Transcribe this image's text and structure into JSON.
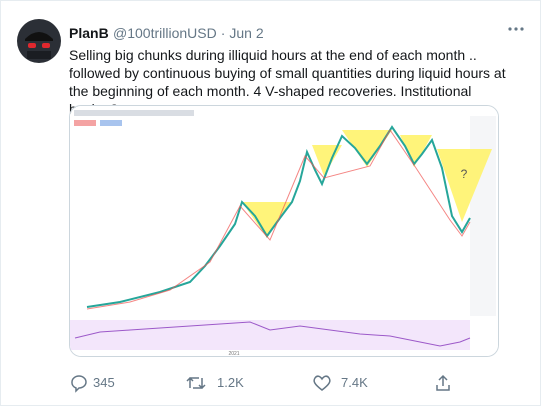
{
  "tweet": {
    "author": "PlanB",
    "handle": "@100trillionUSD",
    "separator": "·",
    "date": "Jun 2",
    "text": "Selling big chunks during illiquid hours at the end of each month .. followed by continuous buying of small quantities during liquid hours at the beginning of each month. 4 V-shaped recoveries. Institutional buying?",
    "media": {
      "year_label": "2021",
      "annotation": "?"
    },
    "actions": {
      "replies": "345",
      "retweets": "1.2K",
      "likes": "7.4K"
    }
  }
}
